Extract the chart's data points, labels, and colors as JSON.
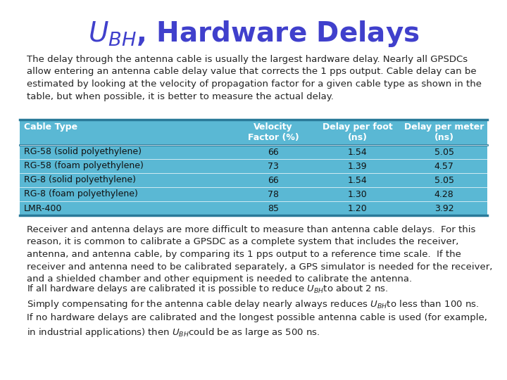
{
  "title_color": "#4040cc",
  "bg_color": "#ffffff",
  "para1": "The delay through the antenna cable is usually the largest hardware delay. Nearly all GPSDCs\nallow entering an antenna cable delay value that corrects the 1 pps output. Cable delay can be\nestimated by looking at the velocity of propagation factor for a given cable type as shown in the\ntable, but when possible, it is better to measure the actual delay.",
  "table_header": [
    "Cable Type",
    "Velocity\nFactor (%)",
    "Delay per foot\n(ns)",
    "Delay per meter\n(ns)"
  ],
  "table_rows": [
    [
      "RG-58 (solid polyethylene)",
      "66",
      "1.54",
      "5.05"
    ],
    [
      "RG-58 (foam polyethylene)",
      "73",
      "1.39",
      "4.57"
    ],
    [
      "RG-8 (solid polyethylene)",
      "66",
      "1.54",
      "5.05"
    ],
    [
      "RG-8 (foam polyethylene)",
      "78",
      "1.30",
      "4.28"
    ],
    [
      "LMR-400",
      "85",
      "1.20",
      "3.92"
    ]
  ],
  "header_bg": "#5ab8d4",
  "row_bg_teal": "#5ab8d4",
  "row_bg_white": "#ffffff",
  "border_color": "#2a7a99",
  "text_color": "#222222",
  "para2": "Receiver and antenna delays are more difficult to measure than antenna cable delays.  For this\nreason, it is common to calibrate a GPSDC as a complete system that includes the receiver,\nantenna, and antenna cable, by comparing its 1 pps output to a reference time scale.  If the\nreceiver and antenna need to be calibrated separately, a GPS simulator is needed for the receiver,\nand a shielded chamber and other equipment is needed to calibrate the antenna.",
  "para3_pre": "If all hardware delays are calibrated it is possible to reduce ",
  "para3_post": "to about 2 ns.",
  "para4_l1_pre": "Simply compensating for the antenna cable delay nearly always reduces ",
  "para4_l1_post": "to less than 100 ns.",
  "para4_l2": "If no hardware delays are calibrated and the longest possible antenna cable is used (for example,",
  "para4_l3_pre": "in industrial applications) then ",
  "para4_l3_post": "could be as large as 500 ns.",
  "title_fontsize": 28,
  "body_fontsize": 9.5,
  "table_fontsize": 9
}
